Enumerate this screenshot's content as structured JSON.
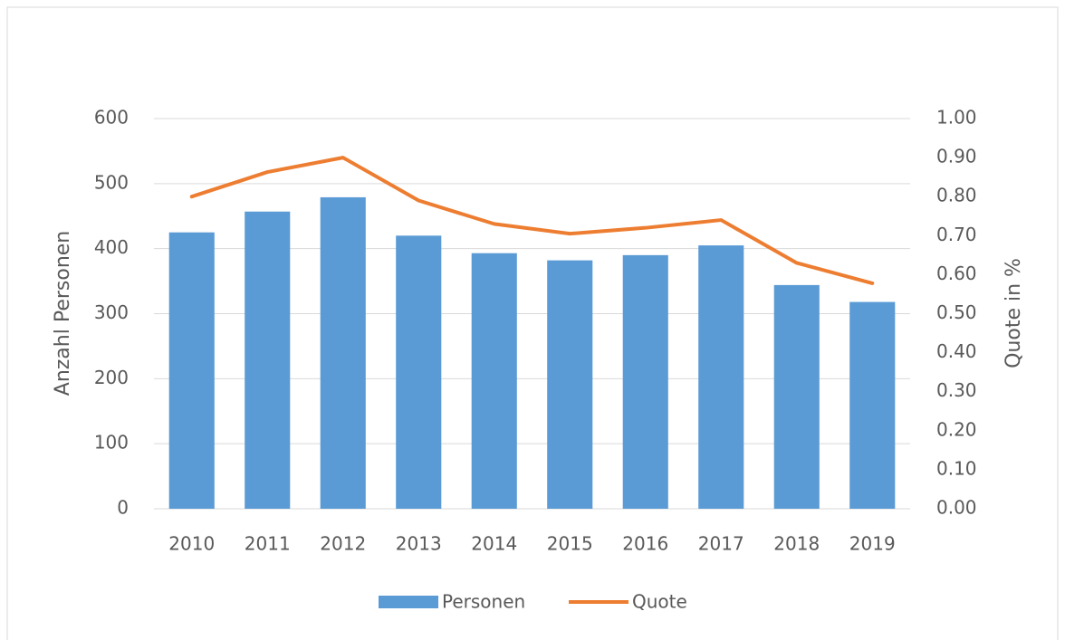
{
  "chart_data": {
    "type": "bar_line",
    "categories": [
      "2010",
      "2011",
      "2012",
      "2013",
      "2014",
      "2015",
      "2016",
      "2017",
      "2018",
      "2019"
    ],
    "series": [
      {
        "name": "Personen",
        "type": "bar",
        "color": "#5b9bd5",
        "values": [
          425,
          457,
          479,
          420,
          393,
          382,
          390,
          405,
          344,
          318
        ]
      },
      {
        "name": "Quote",
        "type": "line",
        "axis": "y2",
        "color": "#ed7d31",
        "values": [
          0.8,
          0.863,
          0.9,
          0.79,
          0.73,
          0.705,
          0.72,
          0.74,
          0.63,
          0.578
        ]
      }
    ],
    "ylabel": "Anzahl Personen",
    "y2label": "Quote in %",
    "ylim": [
      0,
      600
    ],
    "yticks": [
      0,
      100,
      200,
      300,
      400,
      500,
      600
    ],
    "y2lim": [
      0,
      1
    ],
    "y2ticks": [
      {
        "value": 0,
        "label": "0.00"
      },
      {
        "value": 0.1,
        "label": "0.10"
      },
      {
        "value": 0.2,
        "label": "0.20"
      },
      {
        "value": 0.3,
        "label": "0.30"
      },
      {
        "value": 0.4,
        "label": "0.40"
      },
      {
        "value": 0.5,
        "label": "0.50"
      },
      {
        "value": 0.6,
        "label": "0.60"
      },
      {
        "value": 0.7,
        "label": "0.70"
      },
      {
        "value": 0.8,
        "label": "0.80"
      },
      {
        "value": 0.9,
        "label": "0.90"
      },
      {
        "value": 1,
        "label": "1.00"
      }
    ],
    "grid": true,
    "legend": "bottom"
  }
}
